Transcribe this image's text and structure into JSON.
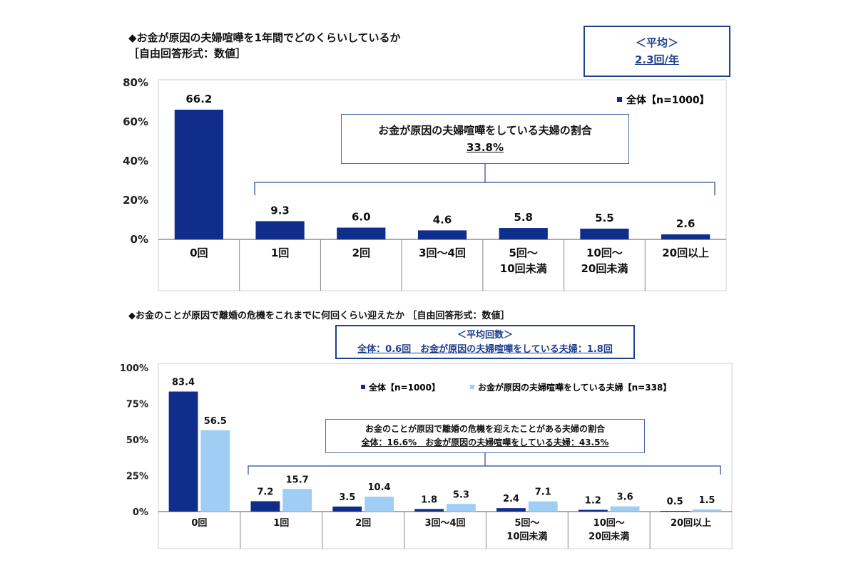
{
  "chart1": {
    "title": "◆お金が原因の夫婦喧嘩を1年間でどのくらいしているか",
    "subtitle": "［自由回答形式：数値］",
    "avg_title": "＜平均＞",
    "avg_value": "2.3回/年",
    "legend": "全体【n=1000】",
    "note_title": "お金が原因の夫婦喧嘩をしている夫婦の割合",
    "note_value": "33.8%"
  },
  "chart2": {
    "title": "◆お金のことが原因で離婚の危機をこれまでに何回くらい迎えたか ［自由回答形式：数値］",
    "avg_title": "＜平均回数＞",
    "avg_value": "全体：0.6回　お金が原因の夫婦喧嘩をしている夫婦：1.8回",
    "legend_1": "全体【n=1000】",
    "legend_2": "お金が原因の夫婦喧嘩をしている夫婦【n=338】",
    "note_title": "お金のことが原因で離婚の危機を迎えたことがある夫婦の割合",
    "note_value": "全体：16.6%　お金が原因の夫婦喧嘩をしている夫婦：43.5%"
  },
  "chart_data": [
    {
      "type": "bar",
      "categories": [
        "0回",
        "1回",
        "2回",
        "3回～4回",
        "5回～\n10回未満",
        "10回～\n20回未満",
        "20回以上"
      ],
      "series": [
        {
          "name": "全体【n=1000】",
          "values": [
            66.2,
            9.3,
            6.0,
            4.6,
            5.8,
            5.5,
            2.6
          ],
          "color": "#0f2d8a"
        }
      ],
      "value_labels": [
        "66.2",
        "9.3",
        "6.0",
        "4.6",
        "5.8",
        "5.5",
        "2.6"
      ],
      "ylim": [
        0,
        80
      ],
      "yticks": [
        "0%",
        "20%",
        "40%",
        "60%",
        "80%"
      ],
      "grid": false,
      "legend_position": "top-right"
    },
    {
      "type": "bar",
      "categories": [
        "0回",
        "1回",
        "2回",
        "3回～4回",
        "5回～\n10回未満",
        "10回～\n20回未満",
        "20回以上"
      ],
      "series": [
        {
          "name": "全体【n=1000】",
          "values": [
            83.4,
            7.2,
            3.5,
            1.8,
            2.4,
            1.2,
            0.5
          ],
          "color": "#0f2d8a",
          "labels": [
            "83.4",
            "7.2",
            "3.5",
            "1.8",
            "2.4",
            "1.2",
            "0.5"
          ]
        },
        {
          "name": "お金が原因の夫婦喧嘩をしている夫婦【n=338】",
          "values": [
            56.5,
            15.7,
            10.4,
            5.3,
            7.1,
            3.6,
            1.5
          ],
          "color": "#9fcdf3",
          "labels": [
            "56.5",
            "15.7",
            "10.4",
            "5.3",
            "7.1",
            "3.6",
            "1.5"
          ]
        }
      ],
      "ylim": [
        0,
        100
      ],
      "yticks": [
        "0%",
        "25%",
        "50%",
        "75%",
        "100%"
      ],
      "grid": false,
      "legend_position": "top-right"
    }
  ]
}
